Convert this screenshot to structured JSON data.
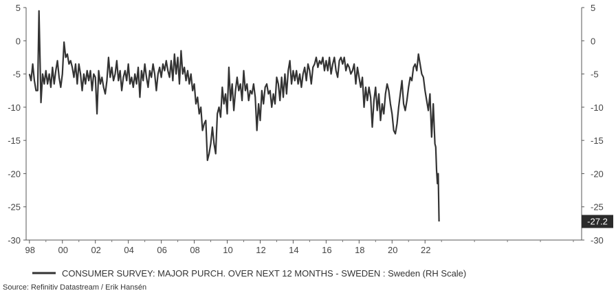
{
  "chart_data": {
    "type": "line",
    "title": "",
    "xlabel": "",
    "ylabel": "",
    "x_tick_labels": [
      "98",
      "00",
      "02",
      "04",
      "06",
      "08",
      "10",
      "12",
      "14",
      "16",
      "18",
      "20",
      "22"
    ],
    "y_ticks": [
      5,
      0,
      -5,
      -10,
      -15,
      -20,
      -25,
      -30
    ],
    "ylim": [
      -30,
      5
    ],
    "xlim": [
      1997.8,
      2031.5
    ],
    "grid": false,
    "legend_position": "bottom-left",
    "last_value_label": "-27.2",
    "series": [
      {
        "name": "CONSUMER SURVEY: MAJOR PURCH. OVER NEXT 12 MONTHS - SWEDEN : Sweden (RH Scale)",
        "color": "#333333",
        "points": [
          [
            1998.0,
            -5.0
          ],
          [
            1998.1,
            -6.0
          ],
          [
            1998.2,
            -3.5
          ],
          [
            1998.3,
            -6.0
          ],
          [
            1998.4,
            -7.5
          ],
          [
            1998.5,
            -7.5
          ],
          [
            1998.58,
            4.5
          ],
          [
            1998.7,
            -9.3
          ],
          [
            1998.8,
            -5.0
          ],
          [
            1998.9,
            -6.5
          ],
          [
            1999.0,
            -4.5
          ],
          [
            1999.1,
            -6.5
          ],
          [
            1999.2,
            -5.0
          ],
          [
            1999.3,
            -7.0
          ],
          [
            1999.4,
            -4.0
          ],
          [
            1999.5,
            -6.5
          ],
          [
            1999.6,
            -4.5
          ],
          [
            1999.7,
            -3.0
          ],
          [
            1999.8,
            -5.5
          ],
          [
            1999.9,
            -7.0
          ],
          [
            2000.0,
            -5.0
          ],
          [
            2000.1,
            -0.2
          ],
          [
            2000.2,
            -2.5
          ],
          [
            2000.3,
            -2.0
          ],
          [
            2000.4,
            -3.5
          ],
          [
            2000.5,
            -3.0
          ],
          [
            2000.6,
            -4.0
          ],
          [
            2000.7,
            -5.5
          ],
          [
            2000.8,
            -3.5
          ],
          [
            2000.9,
            -6.5
          ],
          [
            2001.0,
            -3.5
          ],
          [
            2001.1,
            -5.0
          ],
          [
            2001.2,
            -7.5
          ],
          [
            2001.3,
            -5.0
          ],
          [
            2001.4,
            -6.5
          ],
          [
            2001.5,
            -4.5
          ],
          [
            2001.6,
            -6.0
          ],
          [
            2001.7,
            -4.5
          ],
          [
            2001.8,
            -7.5
          ],
          [
            2001.9,
            -5.0
          ],
          [
            2002.0,
            -5.5
          ],
          [
            2002.1,
            -11.0
          ],
          [
            2002.2,
            -4.5
          ],
          [
            2002.3,
            -6.5
          ],
          [
            2002.4,
            -5.5
          ],
          [
            2002.5,
            -7.0
          ],
          [
            2002.6,
            -8.0
          ],
          [
            2002.7,
            -6.0
          ],
          [
            2002.8,
            -2.5
          ],
          [
            2002.9,
            -5.5
          ],
          [
            2003.0,
            -4.0
          ],
          [
            2003.1,
            -6.0
          ],
          [
            2003.2,
            -5.0
          ],
          [
            2003.3,
            -3.0
          ],
          [
            2003.4,
            -6.0
          ],
          [
            2003.5,
            -4.5
          ],
          [
            2003.6,
            -7.5
          ],
          [
            2003.7,
            -5.5
          ],
          [
            2003.8,
            -4.5
          ],
          [
            2003.9,
            -6.0
          ],
          [
            2004.0,
            -3.5
          ],
          [
            2004.1,
            -6.5
          ],
          [
            2004.2,
            -5.5
          ],
          [
            2004.3,
            -7.0
          ],
          [
            2004.4,
            -5.0
          ],
          [
            2004.5,
            -6.5
          ],
          [
            2004.6,
            -4.0
          ],
          [
            2004.7,
            -8.5
          ],
          [
            2004.8,
            -4.5
          ],
          [
            2004.9,
            -6.0
          ],
          [
            2005.0,
            -3.5
          ],
          [
            2005.1,
            -5.5
          ],
          [
            2005.2,
            -7.0
          ],
          [
            2005.3,
            -4.5
          ],
          [
            2005.4,
            -5.5
          ],
          [
            2005.5,
            -3.5
          ],
          [
            2005.6,
            -5.0
          ],
          [
            2005.7,
            -7.5
          ],
          [
            2005.8,
            -5.0
          ],
          [
            2005.9,
            -4.0
          ],
          [
            2006.0,
            -5.5
          ],
          [
            2006.1,
            -3.5
          ],
          [
            2006.2,
            -4.5
          ],
          [
            2006.3,
            -3.0
          ],
          [
            2006.4,
            -4.5
          ],
          [
            2006.5,
            -5.5
          ],
          [
            2006.6,
            -3.0
          ],
          [
            2006.7,
            -6.0
          ],
          [
            2006.8,
            -2.0
          ],
          [
            2006.9,
            -5.0
          ],
          [
            2007.0,
            -2.5
          ],
          [
            2007.1,
            -6.5
          ],
          [
            2007.2,
            -1.5
          ],
          [
            2007.3,
            -5.0
          ],
          [
            2007.4,
            -4.0
          ],
          [
            2007.5,
            -6.0
          ],
          [
            2007.6,
            -4.5
          ],
          [
            2007.7,
            -6.5
          ],
          [
            2007.8,
            -5.0
          ],
          [
            2007.9,
            -7.5
          ],
          [
            2008.0,
            -6.5
          ],
          [
            2008.1,
            -9.5
          ],
          [
            2008.2,
            -8.5
          ],
          [
            2008.3,
            -11.0
          ],
          [
            2008.4,
            -10.0
          ],
          [
            2008.5,
            -13.5
          ],
          [
            2008.6,
            -12.5
          ],
          [
            2008.7,
            -12.0
          ],
          [
            2008.8,
            -18.0
          ],
          [
            2008.9,
            -17.0
          ],
          [
            2009.0,
            -15.5
          ],
          [
            2009.1,
            -13.0
          ],
          [
            2009.2,
            -15.5
          ],
          [
            2009.3,
            -17.0
          ],
          [
            2009.4,
            -11.0
          ],
          [
            2009.5,
            -10.0
          ],
          [
            2009.6,
            -11.5
          ],
          [
            2009.7,
            -7.0
          ],
          [
            2009.8,
            -9.5
          ],
          [
            2009.9,
            -8.0
          ],
          [
            2010.0,
            -11.0
          ],
          [
            2010.1,
            -4.0
          ],
          [
            2010.2,
            -9.0
          ],
          [
            2010.3,
            -6.5
          ],
          [
            2010.4,
            -10.5
          ],
          [
            2010.5,
            -7.5
          ],
          [
            2010.6,
            -5.5
          ],
          [
            2010.7,
            -7.5
          ],
          [
            2010.8,
            -6.5
          ],
          [
            2010.9,
            -9.0
          ],
          [
            2011.0,
            -4.5
          ],
          [
            2011.1,
            -7.5
          ],
          [
            2011.2,
            -6.5
          ],
          [
            2011.3,
            -9.0
          ],
          [
            2011.4,
            -7.5
          ],
          [
            2011.5,
            -8.0
          ],
          [
            2011.6,
            -6.5
          ],
          [
            2011.7,
            -8.5
          ],
          [
            2011.8,
            -13.5
          ],
          [
            2011.9,
            -9.5
          ],
          [
            2012.0,
            -12.0
          ],
          [
            2012.1,
            -7.5
          ],
          [
            2012.2,
            -9.5
          ],
          [
            2012.3,
            -7.0
          ],
          [
            2012.4,
            -6.5
          ],
          [
            2012.5,
            -8.0
          ],
          [
            2012.6,
            -7.5
          ],
          [
            2012.7,
            -10.0
          ],
          [
            2012.8,
            -8.0
          ],
          [
            2012.9,
            -9.5
          ],
          [
            2013.0,
            -5.5
          ],
          [
            2013.1,
            -6.5
          ],
          [
            2013.2,
            -9.0
          ],
          [
            2013.3,
            -5.5
          ],
          [
            2013.4,
            -8.5
          ],
          [
            2013.5,
            -5.0
          ],
          [
            2013.6,
            -8.0
          ],
          [
            2013.7,
            -4.5
          ],
          [
            2013.8,
            -3.0
          ],
          [
            2013.9,
            -6.5
          ],
          [
            2014.0,
            -4.5
          ],
          [
            2014.1,
            -6.0
          ],
          [
            2014.2,
            -4.5
          ],
          [
            2014.3,
            -6.5
          ],
          [
            2014.4,
            -5.0
          ],
          [
            2014.5,
            -7.0
          ],
          [
            2014.6,
            -5.0
          ],
          [
            2014.7,
            -4.0
          ],
          [
            2014.8,
            -6.0
          ],
          [
            2014.9,
            -3.5
          ],
          [
            2015.0,
            -4.5
          ],
          [
            2015.1,
            -6.5
          ],
          [
            2015.2,
            -4.0
          ],
          [
            2015.3,
            -3.5
          ],
          [
            2015.4,
            -2.5
          ],
          [
            2015.5,
            -4.0
          ],
          [
            2015.6,
            -3.0
          ],
          [
            2015.7,
            -3.5
          ],
          [
            2015.8,
            -2.5
          ],
          [
            2015.9,
            -4.5
          ],
          [
            2016.0,
            -3.0
          ],
          [
            2016.1,
            -4.5
          ],
          [
            2016.2,
            -2.5
          ],
          [
            2016.3,
            -5.0
          ],
          [
            2016.4,
            -3.5
          ],
          [
            2016.5,
            -2.5
          ],
          [
            2016.6,
            -4.5
          ],
          [
            2016.7,
            -5.5
          ],
          [
            2016.8,
            -3.0
          ],
          [
            2016.9,
            -2.5
          ],
          [
            2017.0,
            -3.5
          ],
          [
            2017.1,
            -2.5
          ],
          [
            2017.2,
            -4.5
          ],
          [
            2017.3,
            -3.5
          ],
          [
            2017.4,
            -4.0
          ],
          [
            2017.5,
            -5.0
          ],
          [
            2017.6,
            -4.5
          ],
          [
            2017.7,
            -3.5
          ],
          [
            2017.8,
            -6.5
          ],
          [
            2017.9,
            -4.0
          ],
          [
            2018.0,
            -5.5
          ],
          [
            2018.1,
            -7.0
          ],
          [
            2018.2,
            -5.5
          ],
          [
            2018.3,
            -10.0
          ],
          [
            2018.4,
            -7.0
          ],
          [
            2018.5,
            -9.0
          ],
          [
            2018.6,
            -7.0
          ],
          [
            2018.7,
            -8.5
          ],
          [
            2018.8,
            -13.0
          ],
          [
            2018.9,
            -9.0
          ],
          [
            2019.0,
            -7.0
          ],
          [
            2019.1,
            -10.5
          ],
          [
            2019.2,
            -8.0
          ],
          [
            2019.3,
            -12.0
          ],
          [
            2019.4,
            -9.5
          ],
          [
            2019.5,
            -11.0
          ],
          [
            2019.6,
            -8.0
          ],
          [
            2019.7,
            -6.5
          ],
          [
            2019.8,
            -7.5
          ],
          [
            2019.9,
            -9.5
          ],
          [
            2020.0,
            -11.0
          ],
          [
            2020.1,
            -13.5
          ],
          [
            2020.2,
            -14.0
          ],
          [
            2020.3,
            -12.5
          ],
          [
            2020.4,
            -10.0
          ],
          [
            2020.5,
            -8.0
          ],
          [
            2020.6,
            -6.0
          ],
          [
            2020.7,
            -9.5
          ],
          [
            2020.8,
            -10.5
          ],
          [
            2020.9,
            -9.0
          ],
          [
            2021.0,
            -7.0
          ],
          [
            2021.1,
            -5.5
          ],
          [
            2021.2,
            -6.0
          ],
          [
            2021.3,
            -4.0
          ],
          [
            2021.4,
            -3.5
          ],
          [
            2021.5,
            -4.5
          ],
          [
            2021.6,
            -2.0
          ],
          [
            2021.7,
            -3.5
          ],
          [
            2021.8,
            -5.0
          ],
          [
            2021.9,
            -5.5
          ],
          [
            2022.0,
            -7.5
          ],
          [
            2022.1,
            -9.0
          ],
          [
            2022.2,
            -10.5
          ],
          [
            2022.3,
            -8.0
          ],
          [
            2022.4,
            -14.5
          ],
          [
            2022.5,
            -9.5
          ],
          [
            2022.6,
            -15.5
          ],
          [
            2022.65,
            -16.0
          ],
          [
            2022.7,
            -19.5
          ],
          [
            2022.75,
            -21.5
          ],
          [
            2022.8,
            -20.0
          ],
          [
            2022.85,
            -27.2
          ]
        ]
      }
    ]
  },
  "legend": {
    "entries": [
      "CONSUMER SURVEY: MAJOR PURCH. OVER NEXT 12 MONTHS - SWEDEN : Sweden (RH Scale)"
    ]
  },
  "source": "Source: Refinitiv Datastream / Erik Hansén"
}
